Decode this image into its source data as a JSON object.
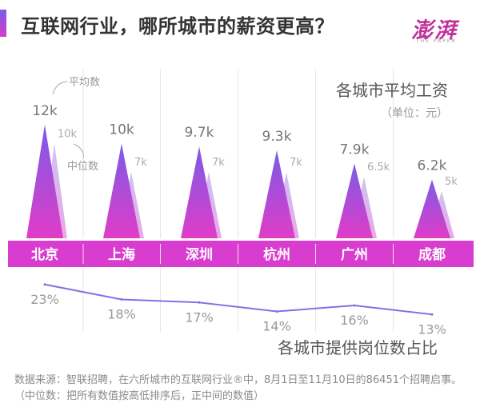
{
  "title": "互联网行业，哪所城市的薪资更高？",
  "logo": {
    "text": "澎湃",
    "subtitle": "THE PAPER"
  },
  "footnote": "数据来源：智联招聘，在六所城市的互联网行业®中，8月1日至11月10日的86451个招聘启事。（中位数：把所有数值按高低排序后，正中间的数值）",
  "colors": {
    "peak_top": "#7b5ce6",
    "peak_bottom": "#e03cc8",
    "median_top": "#cfc2f2",
    "median_bottom": "#e8a9e6",
    "city_band": "#d93dcf",
    "line": "#8a6de6"
  },
  "chart_data": [
    {
      "type": "bar",
      "title": "各城市平均工资",
      "unit_label": "（单位：元）",
      "categories": [
        "北京",
        "上海",
        "深圳",
        "杭州",
        "广州",
        "成都"
      ],
      "series": [
        {
          "name": "平均数",
          "values": [
            12,
            10,
            9.7,
            9.3,
            7.9,
            6.2
          ],
          "labels": [
            "12k",
            "10k",
            "9.7k",
            "9.3k",
            "7.9k",
            "6.2k"
          ]
        },
        {
          "name": "中位数",
          "values": [
            10,
            7,
            7,
            7,
            6.5,
            5
          ],
          "labels": [
            "10k",
            "7k",
            "7k",
            "7k",
            "6.5k",
            "5k"
          ]
        }
      ],
      "ylim": [
        0,
        12
      ],
      "annotations": {
        "mean": "平均数",
        "median": "中位数"
      }
    },
    {
      "type": "line",
      "title": "各城市提供岗位数占比",
      "categories": [
        "北京",
        "上海",
        "深圳",
        "杭州",
        "广州",
        "成都"
      ],
      "values": [
        23,
        18,
        17,
        14,
        16,
        13
      ],
      "labels": [
        "23%",
        "18%",
        "17%",
        "14%",
        "16%",
        "13%"
      ],
      "ylim": [
        12,
        24
      ]
    }
  ]
}
